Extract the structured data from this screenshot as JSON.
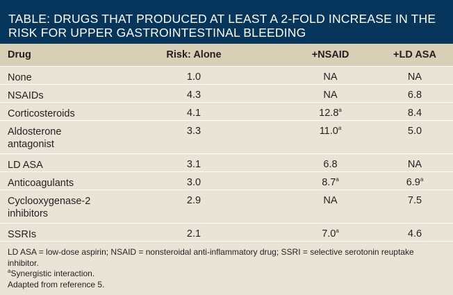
{
  "title": "TABLE: DRUGS THAT PRODUCED AT LEAST A 2-FOLD INCREASE IN THE RISK FOR UPPER GASTROINTESTINAL BLEEDING",
  "headers": [
    "Drug",
    "Risk: Alone",
    "+NSAID",
    "+LD ASA"
  ],
  "rows": [
    {
      "drug": "None",
      "alone": "1.0",
      "nsaid": "NA",
      "nsaid_sup": "",
      "ldasa": "NA",
      "ldasa_sup": ""
    },
    {
      "drug": "NSAIDs",
      "alone": "4.3",
      "nsaid": "NA",
      "nsaid_sup": "",
      "ldasa": "6.8",
      "ldasa_sup": ""
    },
    {
      "drug": "Corticosteroids",
      "alone": "4.1",
      "nsaid": "12.8",
      "nsaid_sup": "a",
      "ldasa": "8.4",
      "ldasa_sup": ""
    },
    {
      "drug": "Aldosterone antagonist",
      "alone": "3.3",
      "nsaid": "11.0",
      "nsaid_sup": "a",
      "ldasa": "5.0",
      "ldasa_sup": ""
    },
    {
      "drug": "LD ASA",
      "alone": "3.1",
      "nsaid": "6.8",
      "nsaid_sup": "",
      "ldasa": "NA",
      "ldasa_sup": ""
    },
    {
      "drug": "Anticoagulants",
      "alone": "3.0",
      "nsaid": "8.7",
      "nsaid_sup": "a",
      "ldasa": "6.9",
      "ldasa_sup": "a"
    },
    {
      "drug": "Cyclooxygenase-2 inhibitors",
      "alone": "2.9",
      "nsaid": "NA",
      "nsaid_sup": "",
      "ldasa": "7.5",
      "ldasa_sup": ""
    },
    {
      "drug": "SSRIs",
      "alone": "2.1",
      "nsaid": "7.0",
      "nsaid_sup": "a",
      "ldasa": "4.6",
      "ldasa_sup": ""
    }
  ],
  "footnotes": {
    "abbreviations": "LD ASA = low-dose aspirin; NSAID = nonsteroidal anti-inflammatory drug; SSRI = selective serotonin reuptake inhibitor.",
    "synergistic_marker": "a",
    "synergistic_text": "Synergistic interaction.",
    "source": "Adapted from reference 5."
  },
  "colors": {
    "title_background": "#05355b",
    "header_row": "#d7cfb6",
    "body_background": "#e9e4d6"
  }
}
